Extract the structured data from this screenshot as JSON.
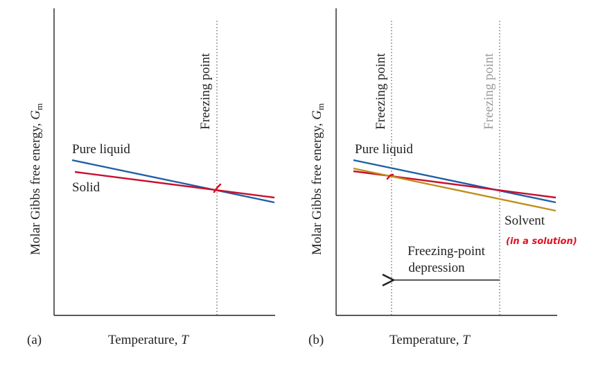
{
  "colors": {
    "pure_liquid": "#1f5fa6",
    "solid": "#c8102e",
    "solvent": "#c0901e",
    "axis": "#222222",
    "faded_label": "#9a9a9a",
    "handwriting": "#e01020"
  },
  "panel_a": {
    "tag": "(a)",
    "y_axis": {
      "prefix": "Molar Gibbs free energy, ",
      "symbol": "G",
      "subscript": "m"
    },
    "x_axis": {
      "prefix": "Temperature, ",
      "symbol": "T"
    },
    "freezing_point_label": "Freezing point",
    "pure_liquid_label": "Pure liquid",
    "solid_label": "Solid"
  },
  "panel_b": {
    "tag": "(b)",
    "y_axis": {
      "prefix": "Molar Gibbs free energy, ",
      "symbol": "G",
      "subscript": "m"
    },
    "x_axis": {
      "prefix": "Temperature, ",
      "symbol": "T"
    },
    "freezing_point_label": "Freezing point",
    "freezing_point_faded_label": "Freezing point",
    "pure_liquid_label": "Pure liquid",
    "solvent_label": "Solvent",
    "depression_label_line1": "Freezing-point",
    "depression_label_line2": "depression",
    "handwritten_note": "(in a solution)"
  }
}
